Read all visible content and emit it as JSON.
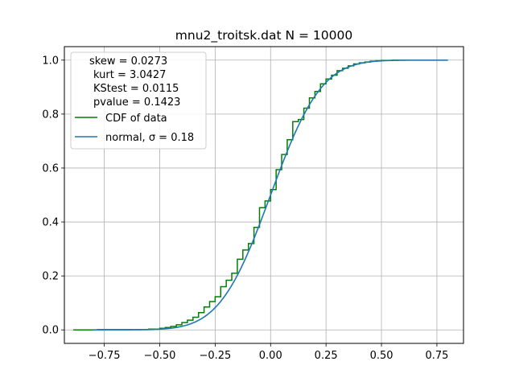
{
  "chart_data": {
    "type": "line",
    "title": "mnu2_troitsk.dat  N = 10000",
    "xlabel": "",
    "ylabel": "",
    "xlim": [
      -0.93,
      0.87
    ],
    "ylim": [
      -0.05,
      1.05
    ],
    "grid": true,
    "legend_placement": "upper-left",
    "xticks": [
      -0.75,
      -0.5,
      -0.25,
      0.0,
      0.25,
      0.5,
      0.75
    ],
    "xtick_labels": [
      "−0.75",
      "−0.50",
      "−0.25",
      "0.00",
      "0.25",
      "0.50",
      "0.75"
    ],
    "yticks": [
      0.0,
      0.2,
      0.4,
      0.6,
      0.8,
      1.0
    ],
    "ytick_labels": [
      "0.0",
      "0.2",
      "0.4",
      "0.6",
      "0.8",
      "1.0"
    ],
    "stats": {
      "skew_line": "skew = 0.0273",
      "kurt_line": "kurt = 3.0427",
      "kstest_line": "KStest = 0.0115",
      "pvalue_line": "pvalue = 0.1423"
    },
    "series": [
      {
        "name": "CDF of data",
        "style": "step",
        "color": "#008000",
        "x": [
          -0.89,
          -0.78,
          -0.55,
          -0.5,
          -0.475,
          -0.45,
          -0.425,
          -0.4,
          -0.375,
          -0.35,
          -0.325,
          -0.3,
          -0.275,
          -0.25,
          -0.225,
          -0.2,
          -0.175,
          -0.15,
          -0.125,
          -0.1,
          -0.075,
          -0.05,
          -0.025,
          0.0,
          0.025,
          0.05,
          0.075,
          0.1,
          0.125,
          0.15,
          0.175,
          0.2,
          0.225,
          0.25,
          0.275,
          0.3,
          0.325,
          0.35,
          0.375,
          0.4,
          0.425,
          0.45,
          0.475,
          0.5,
          0.55,
          0.6,
          0.69
        ],
        "y": [
          0.0,
          0.001,
          0.003,
          0.006,
          0.009,
          0.013,
          0.019,
          0.027,
          0.036,
          0.047,
          0.064,
          0.085,
          0.105,
          0.123,
          0.16,
          0.184,
          0.21,
          0.262,
          0.296,
          0.32,
          0.38,
          0.453,
          0.478,
          0.52,
          0.594,
          0.65,
          0.705,
          0.772,
          0.78,
          0.822,
          0.86,
          0.884,
          0.912,
          0.93,
          0.944,
          0.961,
          0.97,
          0.979,
          0.986,
          0.99,
          0.993,
          0.996,
          0.998,
          0.999,
          1.0,
          1.0,
          1.0
        ]
      },
      {
        "name": "normal, σ = 0.18",
        "style": "line",
        "color": "#1f77b4",
        "mu": 0.0,
        "sigma": 0.18,
        "x_range": [
          -0.8,
          0.8
        ]
      }
    ]
  }
}
